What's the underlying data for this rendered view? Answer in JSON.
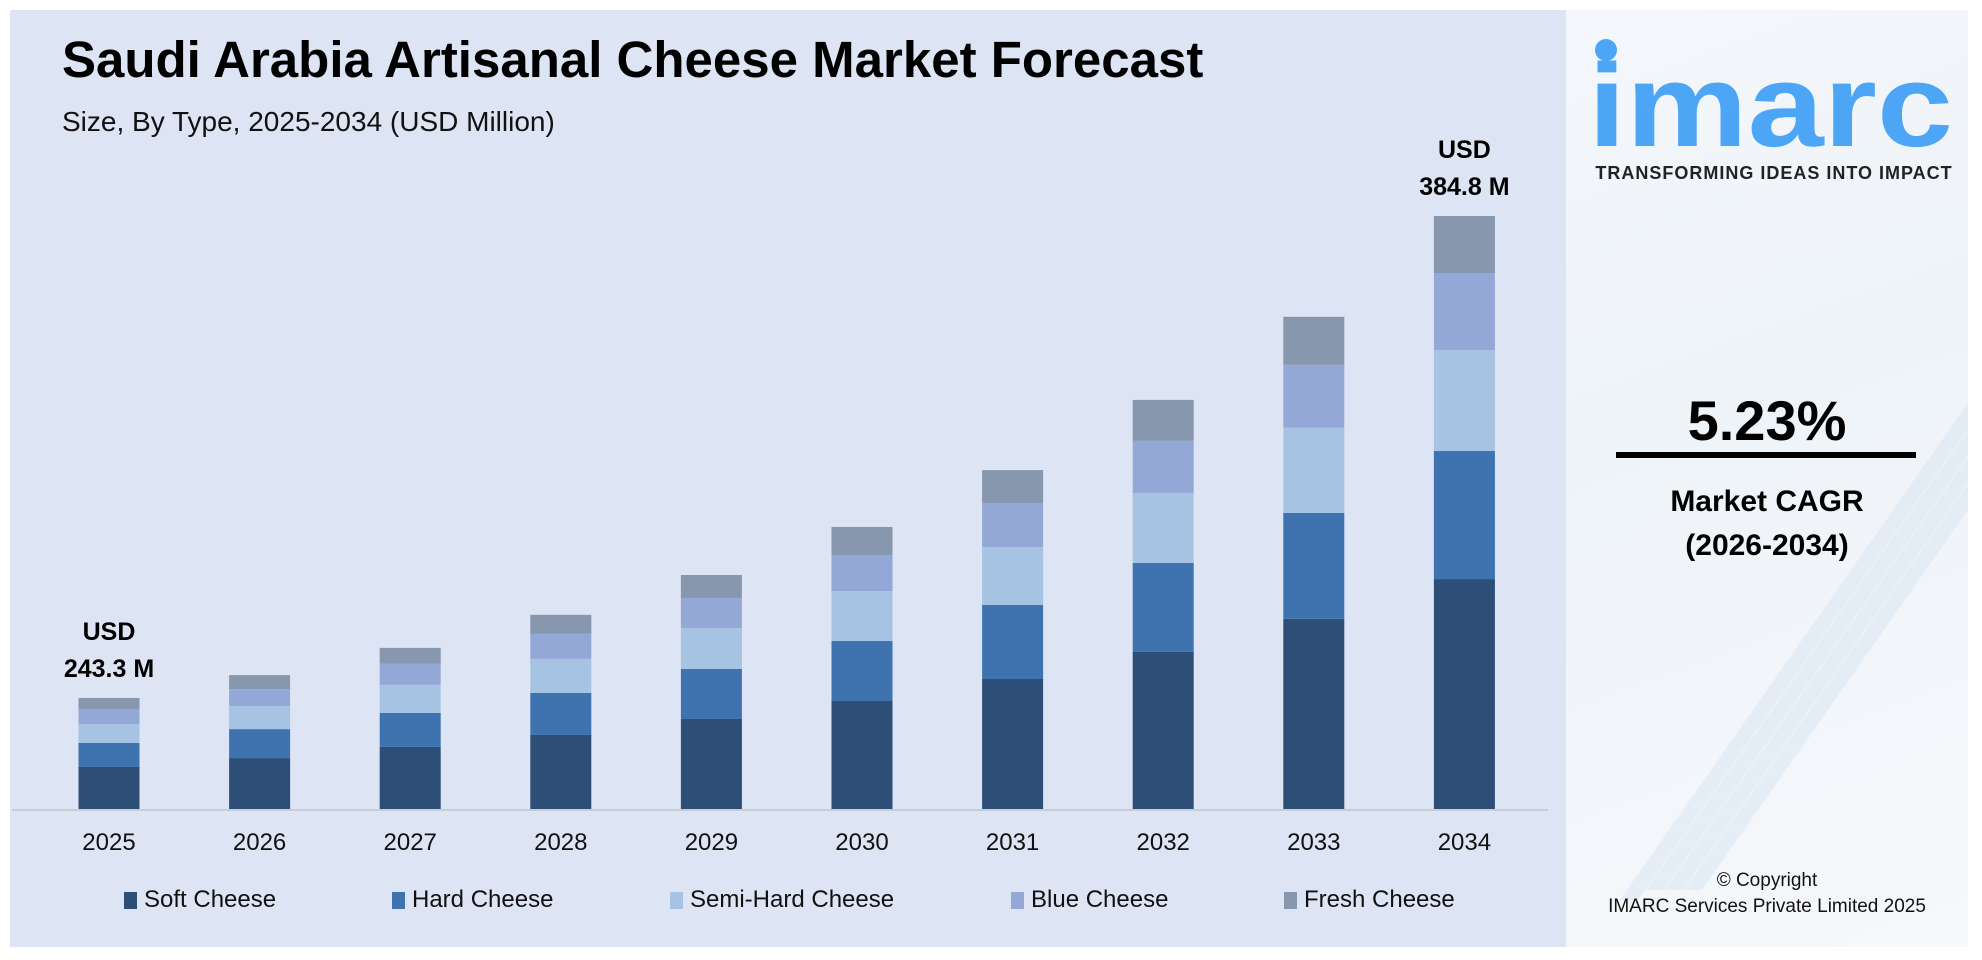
{
  "title": "Saudi Arabia Artisanal Cheese Market Forecast",
  "subtitle": "Size, By Type, 2025-2034 (USD Million)",
  "chart_data": {
    "type": "bar",
    "stacked": true,
    "title": "Saudi Arabia Artisanal Cheese Market Forecast",
    "subtitle": "Size, By Type, 2025-2034 (USD Million)",
    "xlabel": "",
    "ylabel": "",
    "grid": false,
    "legend_position": "bottom",
    "categories": [
      "2025",
      "2026",
      "2027",
      "2028",
      "2029",
      "2030",
      "2031",
      "2032",
      "2033",
      "2034"
    ],
    "totals": [
      243.3,
      250.0,
      258.0,
      267.7,
      279.4,
      293.5,
      310.2,
      330.8,
      355.2,
      384.8
    ],
    "series": [
      {
        "name": "Soft Cheese",
        "color": "#2c4e77",
        "values": [
          92.1,
          95.1,
          99.4,
          102.1,
          107.5,
          112.4,
          119.0,
          127.0,
          137.2,
          149.2
        ]
      },
      {
        "name": "Hard Cheese",
        "color": "#3f73b0",
        "values": [
          52.6,
          54.1,
          54.5,
          58.0,
          59.7,
          62.4,
          67.7,
          72.0,
          76.5,
          83.1
        ]
      },
      {
        "name": "Semi-Hard Cheese",
        "color": "#a7c3e3",
        "values": [
          41.6,
          42.9,
          44.9,
          46.9,
          49.0,
          52.0,
          53.1,
          56.6,
          61.4,
          65.5
        ]
      },
      {
        "name": "Blue Cheese",
        "color": "#94a8d8",
        "values": [
          32.9,
          31.7,
          33.7,
          34.5,
          35.8,
          37.5,
          40.3,
          42.1,
          45.5,
          50.0
        ]
      },
      {
        "name": "Fresh Cheese",
        "color": "#8797ae",
        "values": [
          24.1,
          26.2,
          25.5,
          26.2,
          27.4,
          29.2,
          30.1,
          33.1,
          34.6,
          37.0
        ]
      }
    ],
    "annotations": [
      {
        "category": "2025",
        "line1": "USD",
        "line2": "243.3 M"
      },
      {
        "category": "2034",
        "line1": "USD",
        "line2": "384.8 M"
      }
    ]
  },
  "side": {
    "logo_text": "imarc",
    "tagline": "TRANSFORMING IDEAS INTO IMPACT",
    "cagr_value": "5.23%",
    "cagr_label": "Market CAGR",
    "cagr_period": "(2026-2034)",
    "copyright_line1": "© Copyright",
    "copyright_line2": "IMARC Services Private Limited 2025",
    "brand_color": "#4da6f5"
  }
}
